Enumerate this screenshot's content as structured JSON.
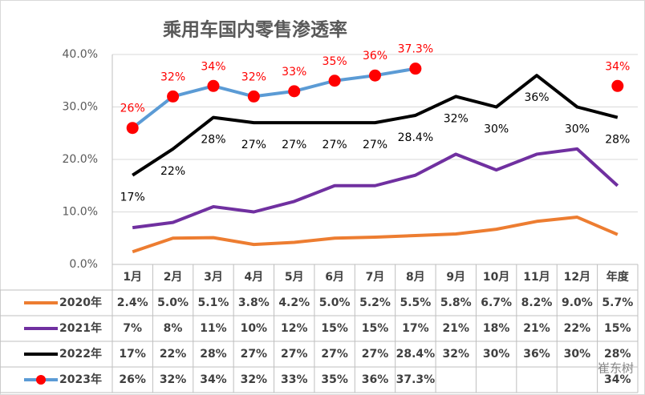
{
  "chart_data": {
    "type": "line",
    "title": "乘用车国内零售渗透率",
    "categories": [
      "1月",
      "2月",
      "3月",
      "4月",
      "5月",
      "6月",
      "7月",
      "8月",
      "9月",
      "10月",
      "11月",
      "12月",
      "年度"
    ],
    "ylim": [
      0,
      40
    ],
    "yticks": [
      {
        "value": 0,
        "label": "0.0%"
      },
      {
        "value": 10,
        "label": "10.0%"
      },
      {
        "value": 20,
        "label": "20.0%"
      },
      {
        "value": 30,
        "label": "30.0%"
      },
      {
        "value": 40,
        "label": "40.0%"
      }
    ],
    "grid": true,
    "series": [
      {
        "name": "2020年",
        "color": "#ed7d31",
        "data_labels": false,
        "values": [
          2.4,
          5.0,
          5.1,
          3.8,
          4.2,
          5.0,
          5.2,
          5.5,
          5.8,
          6.7,
          8.2,
          9.0,
          5.7
        ],
        "value_labels": [
          "2.4%",
          "5.0%",
          "5.1%",
          "3.8%",
          "4.2%",
          "5.0%",
          "5.2%",
          "5.5%",
          "5.8%",
          "6.7%",
          "8.2%",
          "9.0%",
          "5.7%"
        ]
      },
      {
        "name": "2021年",
        "color": "#7030a0",
        "data_labels": false,
        "values": [
          7,
          8,
          11,
          10,
          12,
          15,
          15,
          17,
          21,
          18,
          21,
          22,
          15
        ],
        "value_labels": [
          "7%",
          "8%",
          "11%",
          "10%",
          "12%",
          "15%",
          "15%",
          "17%",
          "21%",
          "18%",
          "21%",
          "22%",
          "15%"
        ]
      },
      {
        "name": "2022年",
        "color": "#000000",
        "data_labels": true,
        "values": [
          17,
          22,
          28,
          27,
          27,
          27,
          27,
          28.4,
          32,
          30,
          36,
          30,
          28
        ],
        "value_labels": [
          "17%",
          "22%",
          "28%",
          "27%",
          "27%",
          "27%",
          "27%",
          "28.4%",
          "32%",
          "30%",
          "36%",
          "30%",
          "28%"
        ]
      },
      {
        "name": "2023年",
        "color": "#5b9bd5",
        "marker_color": "#ff0000",
        "data_labels": true,
        "values": [
          26,
          32,
          34,
          32,
          33,
          35,
          36,
          37.3,
          null,
          null,
          null,
          null,
          34
        ],
        "value_labels": [
          "26%",
          "32%",
          "34%",
          "32%",
          "33%",
          "35%",
          "36%",
          "37.3%",
          null,
          null,
          null,
          null,
          "34%"
        ]
      }
    ],
    "watermark": "崔东树"
  }
}
